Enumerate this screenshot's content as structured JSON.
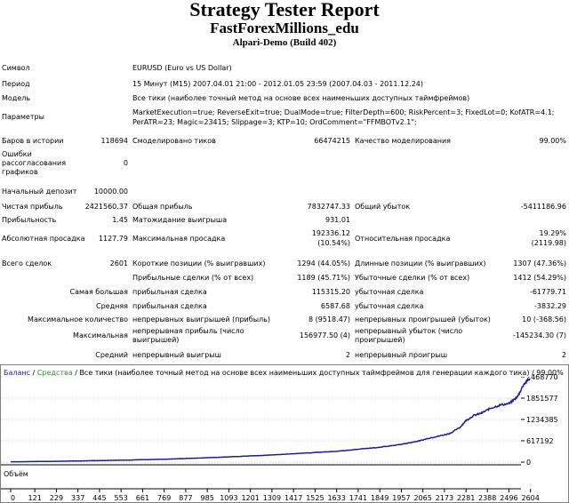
{
  "report": {
    "title": "Strategy Tester Report",
    "subtitle": "FastForexMillions_edu",
    "build": "Alpari-Demo (Build 402)"
  },
  "info": {
    "symbol_label": "Символ",
    "symbol_value": "EURUSD (Euro vs US Dollar)",
    "period_label": "Период",
    "period_value": "15 Минут (M15) 2007.04.01 21:00 - 2012.01.05 23:59 (2007.04.03 - 2011.12.24)",
    "model_label": "Модель",
    "model_value": "Все тики (наиболее точный метод на основе всех наименьших доступных таймфреймов)",
    "params_label": "Параметры",
    "params_line1": "MarketExecution=true; ReverseExit=true; DualMode=true; FilterDepth=600; RiskPercent=3; FixedLot=0; KofATR=4.1;",
    "params_line2": "PerATR=23; Magic=23415; Slippage=3; KTP=10; OrdComment=\"FFMBOTv2.1\";"
  },
  "stats": {
    "bars_label": "Баров в истории",
    "bars_value": "118694",
    "ticks_label": "Смоделировано тиков",
    "ticks_value": "66474215",
    "quality_label": "Качество моделирования",
    "quality_value": "99.00%",
    "errors_label_1": "Ошибки",
    "errors_label_2": "рассогласования",
    "errors_label_3": "графиков",
    "errors_value": "0",
    "deposit_label": "Начальный депозит",
    "deposit_value": "10000.00",
    "net_label": "Чистая прибыль",
    "net_value": "2421560.37",
    "gross_profit_label": "Общая прибыль",
    "gross_profit_value": "7832747.33",
    "gross_loss_label": "Общий убыток",
    "gross_loss_value": "-5411186.96",
    "pf_label": "Прибыльность",
    "pf_value": "1.45",
    "payoff_label": "Матожидание выигрыша",
    "payoff_value": "931.01",
    "abs_dd_label": "Абсолютная просадка",
    "abs_dd_value": "1127.79",
    "max_dd_label": "Максимальная просадка",
    "max_dd_value_1": "192336.12",
    "max_dd_value_2": "(10.54%)",
    "rel_dd_label": "Относительная просадка",
    "rel_dd_value_1": "19.29%",
    "rel_dd_value_2": "(2119.98)",
    "trades_label": "Всего сделок",
    "trades_value": "2601",
    "short_label": "Короткие позиции (% выигравших)",
    "short_value": "1294 (44.05%)",
    "long_label": "Длинные позиции (% выигравших)",
    "long_value": "1307 (47.36%)",
    "profit_trades_label": "Прибыльные сделки (% от всех)",
    "profit_trades_value": "1189 (45.71%)",
    "loss_trades_label": "Убыточные сделки (% от всех)",
    "loss_trades_value": "1412 (54.29%)",
    "largest_label": "Самая большая",
    "largest_profit_label": "прибыльная сделка",
    "largest_profit_value": "115315.20",
    "largest_loss_label": "убыточная сделка",
    "largest_loss_value": "-61779.71",
    "avg_label": "Средняя",
    "avg_profit_label": "прибыльная сделка",
    "avg_profit_value": "6587.68",
    "avg_loss_label": "убыточная сделка",
    "avg_loss_value": "-3832.29",
    "max_count_label": "Максимальное количество",
    "max_cons_wins_label": "непрерывных выигрышей (прибыль)",
    "max_cons_wins_value": "8 (9518.47)",
    "max_cons_losses_label": "непрерывных проигрышей (убыток)",
    "max_cons_losses_value": "10 (-368.56)",
    "max_label": "Максимальная",
    "max_cons_profit_label_1": "непрерывная прибыль (число",
    "max_cons_profit_label_2": "выигрышей)",
    "max_cons_profit_value": "156977.50 (4)",
    "max_cons_loss_label_1": "непрерывный убыток (число",
    "max_cons_loss_label_2": "проигрышей)",
    "max_cons_loss_value": "-145234.30 (7)",
    "avg_cons_label": "Средний",
    "avg_cons_wins_label": "непрерывный выигрыш",
    "avg_cons_wins_value": "2",
    "avg_cons_losses_label": "непрерывный проигрыш",
    "avg_cons_losses_value": "2"
  },
  "chart_data": {
    "type": "line",
    "legend": {
      "balance": "Баланс",
      "equity": "Средства",
      "desc": "Все тики (наиболее точный метод на основе всех наименьших доступных таймфреймов для генерации каждого тика) / 99.00%"
    },
    "colors": {
      "balance": "#1a1aa6",
      "equity": "#1e9c1e",
      "grid": "#c8c8c8",
      "volume_line": "#000000"
    },
    "volume_label": "Объём",
    "xlim": [
      0,
      2601
    ],
    "ylim": [
      -150000,
      2468770
    ],
    "x_ticks": [
      0,
      121,
      229,
      337,
      445,
      553,
      661,
      769,
      877,
      985,
      1093,
      1201,
      1309,
      1417,
      1525,
      1633,
      1741,
      1849,
      1957,
      2065,
      2173,
      2281,
      2388,
      2496,
      2604
    ],
    "y_ticks": [
      0,
      617192,
      1234385,
      1851577,
      2468770
    ],
    "y_tick_labels": [
      "0",
      "617192",
      "1234385",
      "1851577",
      "2468770"
    ],
    "series": [
      {
        "name": "Баланс",
        "x": [
          0,
          200,
          400,
          600,
          800,
          1000,
          1200,
          1350,
          1500,
          1650,
          1750,
          1850,
          1950,
          2000,
          2050,
          2100,
          2150,
          2200,
          2250,
          2280,
          2320,
          2360,
          2400,
          2450,
          2500,
          2540,
          2570,
          2601
        ],
        "y": [
          10000,
          20000,
          40000,
          60000,
          90000,
          130000,
          180000,
          220000,
          270000,
          320000,
          380000,
          430000,
          510000,
          560000,
          620000,
          700000,
          760000,
          830000,
          1000000,
          1200000,
          1350000,
          1420000,
          1550000,
          1650000,
          1700000,
          1900000,
          2250000,
          2421560
        ]
      }
    ]
  }
}
